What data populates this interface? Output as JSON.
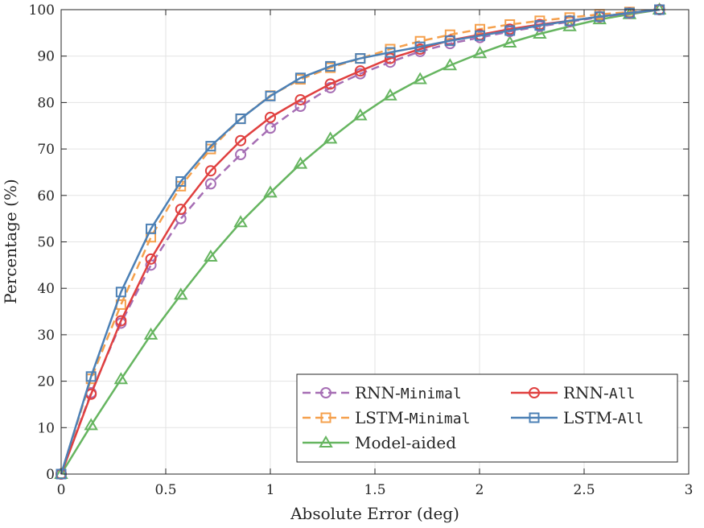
{
  "chart_data": {
    "type": "line",
    "title": "",
    "xlabel": "Absolute Error (deg)",
    "ylabel": "Percentage (%)",
    "xlim": [
      0,
      3
    ],
    "ylim": [
      0,
      100
    ],
    "xticks": [
      0,
      0.5,
      1,
      1.5,
      2,
      2.5,
      3
    ],
    "xtick_labels": [
      "0",
      "0.5",
      "1",
      "1.5",
      "2",
      "2.5",
      "3"
    ],
    "yticks": [
      0,
      10,
      20,
      30,
      40,
      50,
      60,
      70,
      80,
      90,
      100
    ],
    "ytick_labels": [
      "0",
      "10",
      "20",
      "30",
      "40",
      "50",
      "60",
      "70",
      "80",
      "90",
      "100"
    ],
    "grid": true,
    "legend_position": "bottom-right",
    "x": [
      0,
      0.143,
      0.286,
      0.429,
      0.572,
      0.715,
      0.858,
      1.0,
      1.144,
      1.287,
      1.43,
      1.573,
      1.716,
      1.859,
      2.002,
      2.145,
      2.288,
      2.431,
      2.574,
      2.717,
      2.86
    ],
    "series": [
      {
        "name_main": "RNN-",
        "name_mono": "Minimal",
        "color": "#A66EB4",
        "marker": "circle",
        "dash": "dashed",
        "values": [
          0,
          17.5,
          32.5,
          45,
          55,
          62.5,
          68.8,
          74.5,
          79.2,
          83.2,
          86.2,
          88.7,
          91,
          92.7,
          94,
          95.3,
          96.4,
          97.4,
          98.4,
          99.2,
          100
        ]
      },
      {
        "name_main": "RNN-",
        "name_mono": "All",
        "color": "#E0403F",
        "marker": "circle",
        "dash": "solid",
        "values": [
          0,
          17.2,
          33,
          46.3,
          57,
          65.3,
          71.8,
          76.8,
          80.6,
          84,
          86.8,
          89.5,
          91.5,
          93.4,
          94.6,
          95.8,
          96.8,
          97.6,
          98.5,
          99.3,
          100
        ]
      },
      {
        "name_main": "LSTM-",
        "name_mono": "Minimal",
        "color": "#F5A04C",
        "marker": "square",
        "dash": "dashed",
        "values": [
          0,
          20.5,
          36.5,
          51,
          62,
          70,
          76.5,
          81.5,
          85,
          87.5,
          89.5,
          91.5,
          93.2,
          94.6,
          95.8,
          96.8,
          97.6,
          98.3,
          99,
          99.5,
          100
        ]
      },
      {
        "name_main": "LSTM-",
        "name_mono": "All",
        "color": "#4C80B5",
        "marker": "square",
        "dash": "solid",
        "values": [
          0,
          21,
          39.2,
          52.8,
          63,
          70.6,
          76.5,
          81.4,
          85.3,
          87.8,
          89.5,
          90.8,
          92,
          93.3,
          94.4,
          95.5,
          96.6,
          97.6,
          98.5,
          99.3,
          100
        ]
      },
      {
        "name_main": "Model-aided",
        "name_mono": "",
        "color": "#66B560",
        "marker": "triangle",
        "dash": "solid",
        "values": [
          0,
          10.5,
          20.4,
          30,
          38.6,
          46.8,
          54.2,
          60.6,
          66.8,
          72.2,
          77.2,
          81.5,
          85,
          88,
          90.6,
          92.9,
          94.8,
          96.4,
          97.9,
          99,
          100
        ]
      }
    ]
  }
}
